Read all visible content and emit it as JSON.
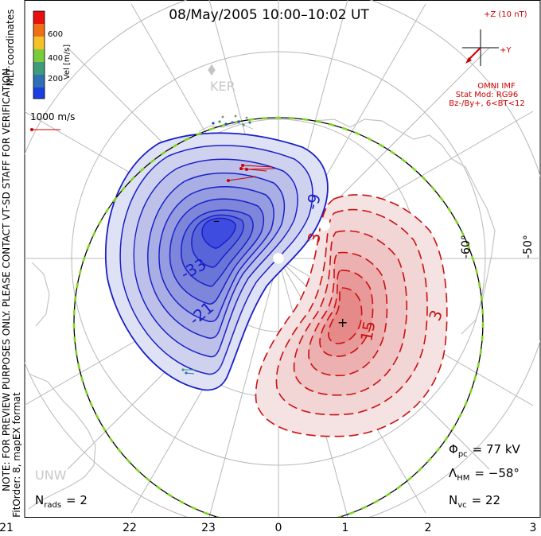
{
  "title": "08/May/2005  10:00–10:02  UT",
  "colorbar": {
    "label": "Vel [m/s]",
    "ticks": [
      "600",
      "400",
      "200"
    ],
    "colors": [
      "#e8100e",
      "#f06f16",
      "#f5c12b",
      "#7ccb3a",
      "#3f9b7a",
      "#2e6fb5",
      "#1b3fe0"
    ]
  },
  "coordinate_label": "MLT coordinates",
  "scale_vector": "1000 m/s",
  "imf": {
    "bz_label": "+Z (10 nT)",
    "by_label": "+Y",
    "caption": "OMNI IMF",
    "model_line1": "Stat Mod: RG96",
    "model_line2": "Bz-/By+, 6<BT<12"
  },
  "station_labels": {
    "ker": "KER",
    "unw": "UNW"
  },
  "latitude_labels": [
    "-60°",
    "-50°"
  ],
  "contour_labels_neg": [
    "-9",
    "-33",
    "-21"
  ],
  "contour_labels_pos": [
    "3",
    "15",
    "3"
  ],
  "markers": {
    "min": "–",
    "max": "+"
  },
  "side_notes": {
    "line1": "NOTE: FOR PREVIEW PURPOSES ONLY. PLEASE CONTACT VT-SD STAFF FOR VERIFICATION.",
    "line2": "FitOrder: 8, mapEX format"
  },
  "stats": {
    "phi_sym": "Φ",
    "phi_sub": "pc",
    "phi_val": "= 77 kV",
    "lam_sym": "Λ",
    "lam_sub": "HM",
    "lam_val": "= −58°",
    "nvc_sym": "N",
    "nvc_sub": "vc",
    "nvc_val": "= 22",
    "nrads_sym": "N",
    "nrads_sub": "rads",
    "nrads_val": "= 2"
  },
  "mlt_axis": [
    "21",
    "22",
    "23",
    "0",
    "1",
    "2",
    "3"
  ],
  "colors": {
    "negative": "#1a20c8",
    "positive": "#cc1010",
    "boundary": "#7ed321"
  }
}
